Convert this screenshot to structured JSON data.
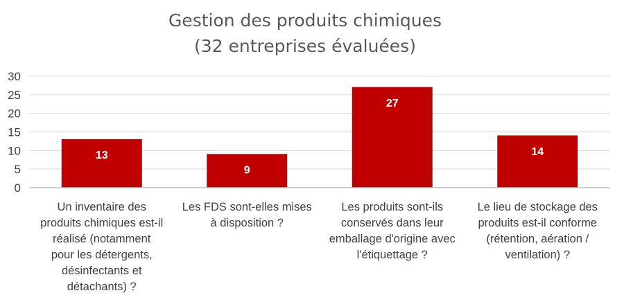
{
  "chart_data": {
    "type": "bar",
    "title": [
      "Gestion des produits chimiques",
      "(32 entreprises évaluées)"
    ],
    "categories": [
      [
        "Un inventaire des",
        "produits chimiques est-il",
        "réalisé (notamment",
        "pour les détergents,",
        "désinfectants et",
        "détachants) ?"
      ],
      [
        "Les FDS sont-elles mises",
        "à disposition ?"
      ],
      [
        "Les produits sont-ils",
        "conservés dans leur",
        "emballage d'origine avec",
        "l'étiquettage ?"
      ],
      [
        "Le lieu de stockage des",
        "produits est-il conforme",
        "(rétention, aération /",
        "ventilation) ?"
      ]
    ],
    "values": [
      13,
      9,
      27,
      14
    ],
    "data_labels": [
      "13",
      "9",
      "27",
      "14"
    ],
    "ylim": [
      0,
      30
    ],
    "yticks": [
      "0",
      "5",
      "10",
      "15",
      "20",
      "25",
      "30"
    ],
    "grid": true,
    "legend": "none",
    "bar_color": "#c00000",
    "xlabel": "",
    "ylabel": ""
  }
}
